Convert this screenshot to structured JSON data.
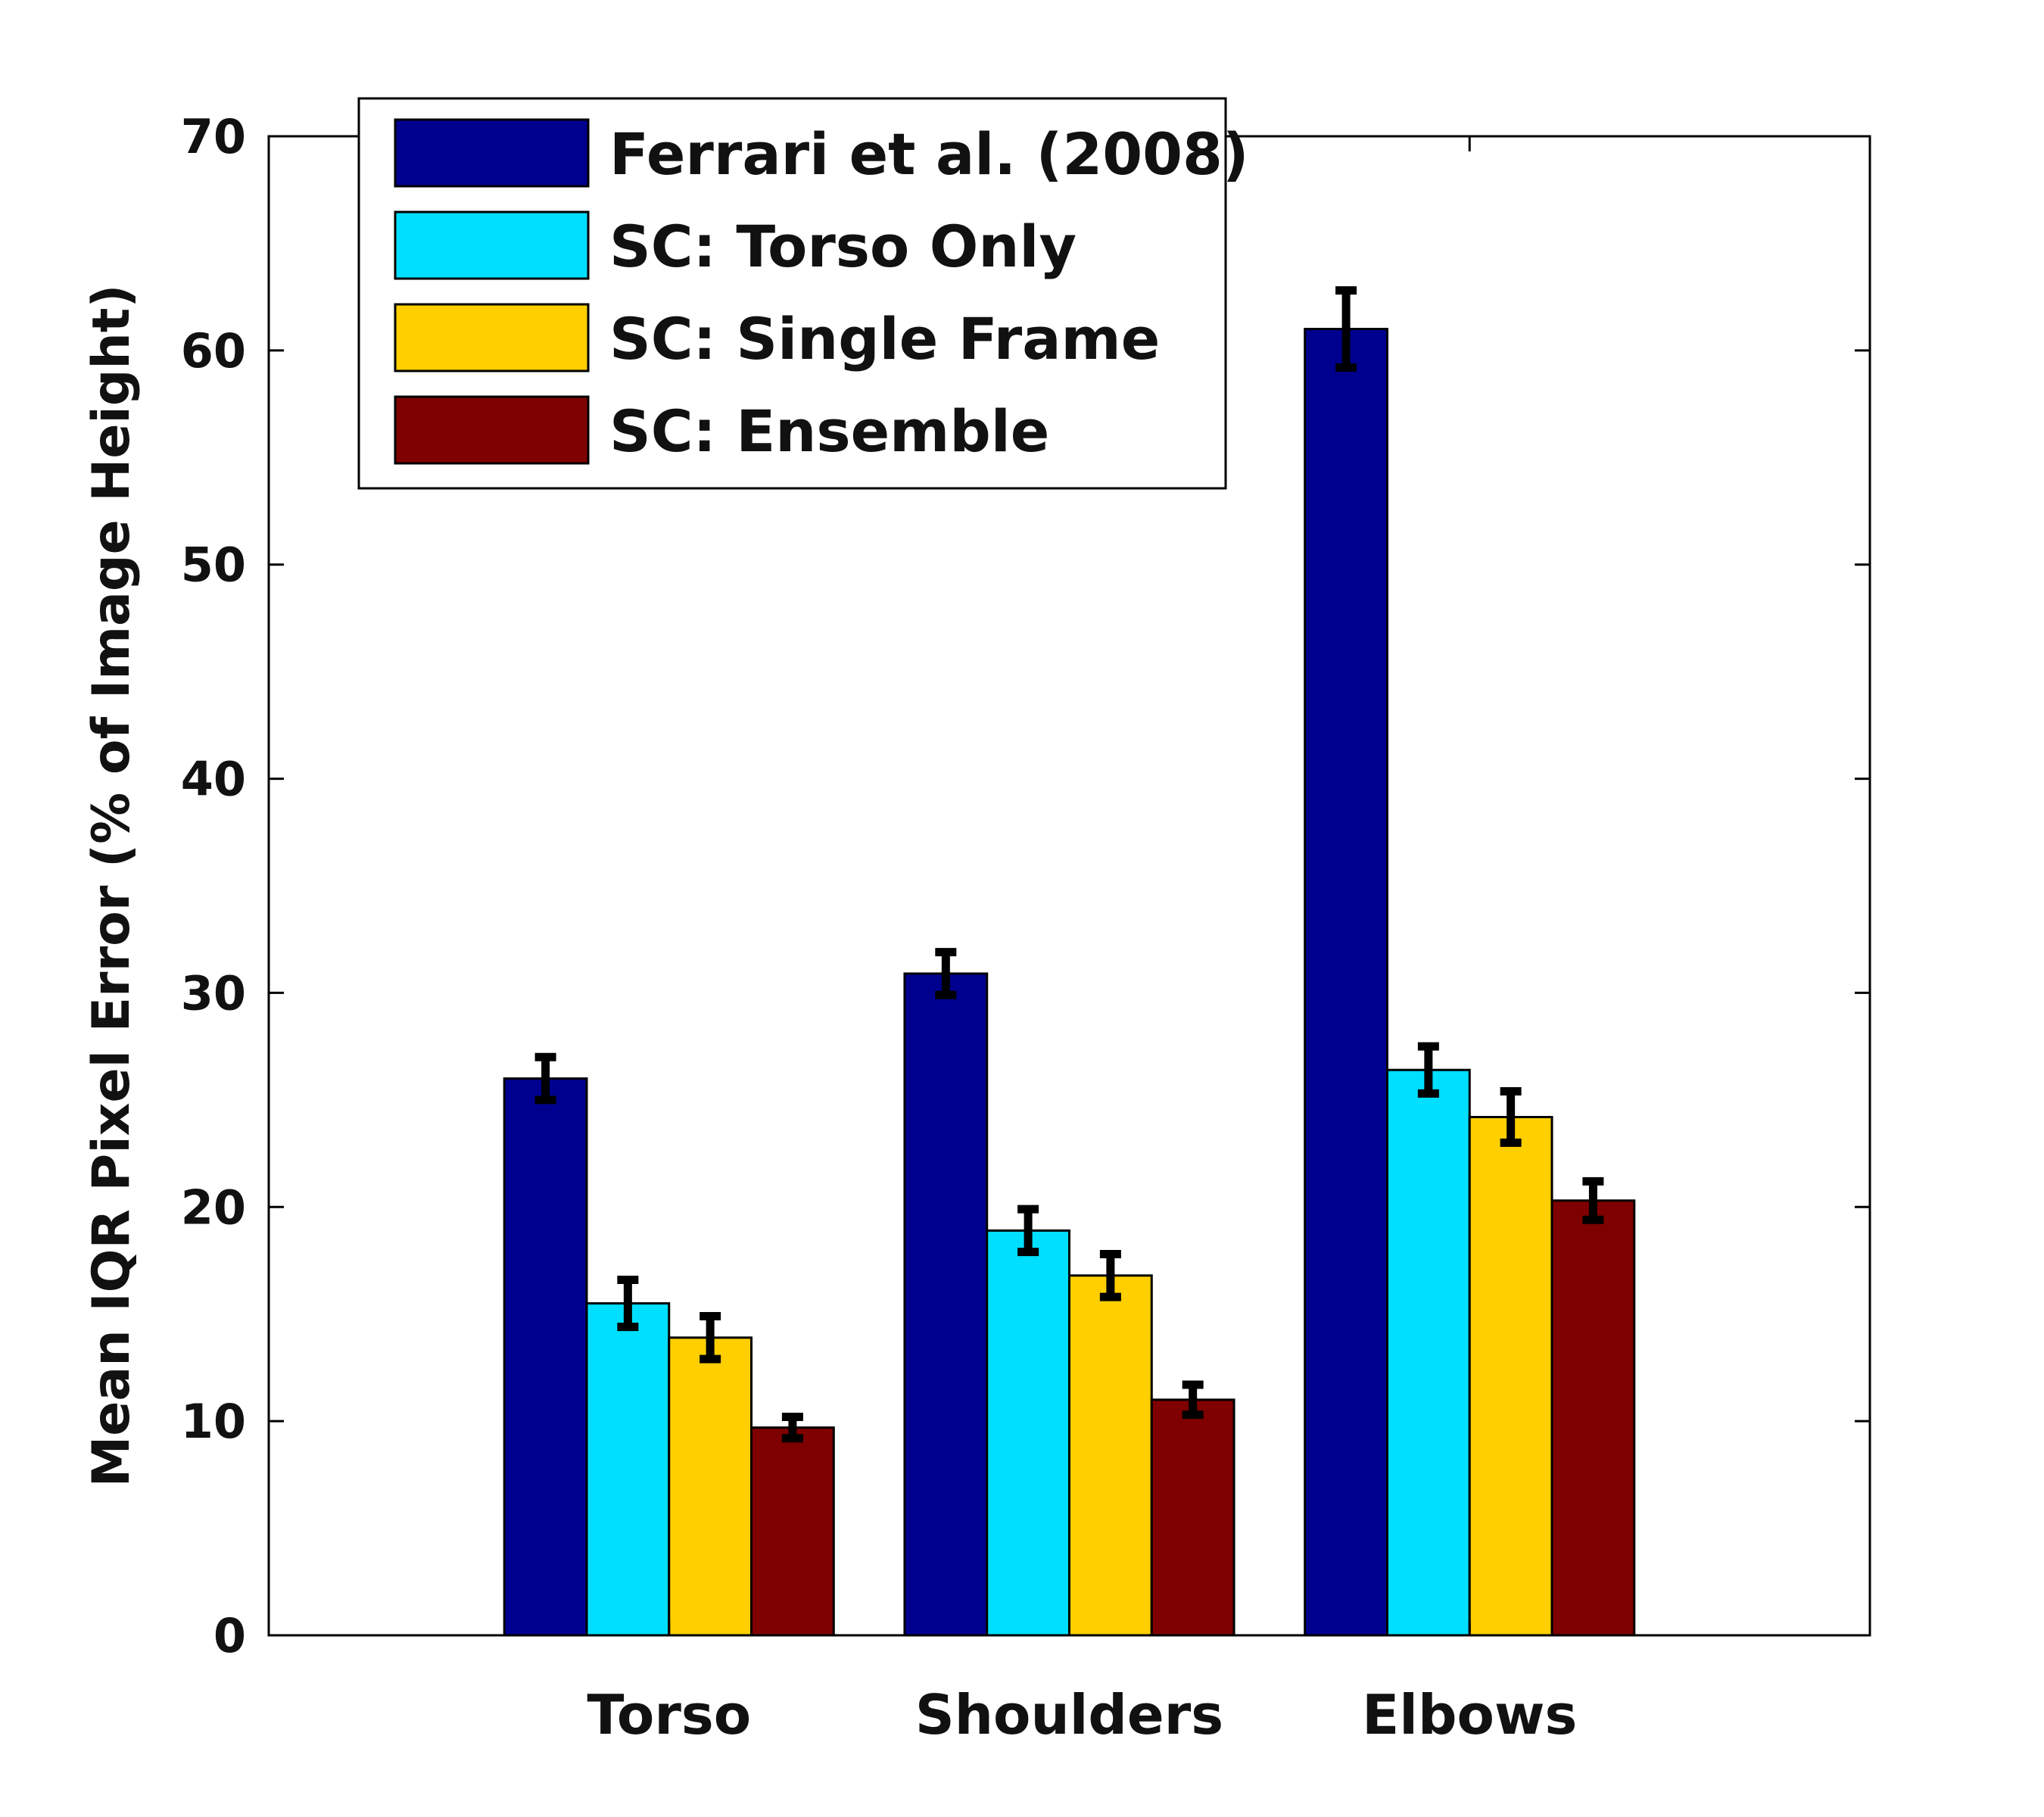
{
  "chart_data": {
    "type": "bar",
    "title": "",
    "xlabel": "",
    "ylabel": "Mean IQR Pixel Error (% of Image Height)",
    "ylim": [
      0,
      70
    ],
    "yticks": [
      0,
      10,
      20,
      30,
      40,
      50,
      60,
      70
    ],
    "categories": [
      "Torso",
      "Shoulders",
      "Elbows"
    ],
    "legend_position": "top-left",
    "grid": false,
    "series": [
      {
        "name": "Ferrari et al. (2008)",
        "color": "#00008f",
        "values": [
          26.0,
          30.9,
          61.0
        ],
        "errors": [
          1.0,
          1.0,
          1.8
        ]
      },
      {
        "name": "SC: Torso Only",
        "color": "#00dfff",
        "values": [
          15.5,
          18.9,
          26.4
        ],
        "errors": [
          1.1,
          1.0,
          1.1
        ]
      },
      {
        "name": "SC: Single Frame",
        "color": "#ffcf00",
        "values": [
          13.9,
          16.8,
          24.2
        ],
        "errors": [
          1.0,
          1.0,
          1.2
        ]
      },
      {
        "name": "SC: Ensemble",
        "color": "#7f0000",
        "values": [
          9.7,
          11.0,
          20.3
        ],
        "errors": [
          0.5,
          0.7,
          0.9
        ]
      }
    ]
  }
}
